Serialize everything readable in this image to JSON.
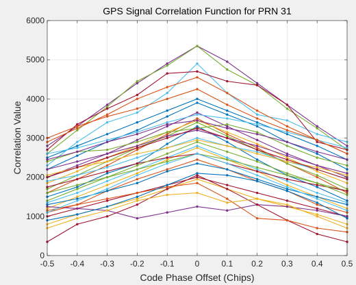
{
  "chart_data": {
    "type": "line",
    "title": "GPS Signal Correlation Function for PRN 31",
    "xlabel": "Code Phase Offset (Chips)",
    "ylabel": "Correlation Value",
    "xlim": [
      -0.5,
      0.5
    ],
    "ylim": [
      0,
      6000
    ],
    "xticks": [
      "-0.5",
      "-0.4",
      "-0.3",
      "-0.2",
      "-0.1",
      "0",
      "0.1",
      "0.2",
      "0.3",
      "0.4",
      "0.5"
    ],
    "yticks": [
      "0",
      "1000",
      "2000",
      "3000",
      "4000",
      "5000",
      "6000"
    ],
    "grid": true,
    "x": [
      -0.5,
      -0.4,
      -0.3,
      -0.2,
      -0.1,
      0,
      0.1,
      0.2,
      0.3,
      0.4,
      0.5
    ],
    "series": [
      {
        "color": "#0072bd",
        "values": [
          2200,
          2550,
          2900,
          3200,
          3550,
          3900,
          3600,
          3300,
          2900,
          2600,
          2200
        ]
      },
      {
        "color": "#d95319",
        "values": [
          1600,
          1950,
          2300,
          2700,
          3100,
          3500,
          3100,
          2750,
          2350,
          2000,
          1600
        ]
      },
      {
        "color": "#edb120",
        "values": [
          1200,
          1500,
          1800,
          2100,
          2450,
          2750,
          2450,
          2150,
          1800,
          1500,
          1200
        ]
      },
      {
        "color": "#7e2f8e",
        "values": [
          2800,
          3300,
          3850,
          4400,
          4900,
          5350,
          4950,
          4400,
          3850,
          3300,
          2800
        ]
      },
      {
        "color": "#77ac30",
        "values": [
          2600,
          3200,
          3800,
          4450,
          4850,
          5350,
          4750,
          4350,
          3750,
          3250,
          2700
        ]
      },
      {
        "color": "#4dbeee",
        "values": [
          2300,
          2900,
          3400,
          3650,
          4150,
          4900,
          4150,
          3600,
          3450,
          3100,
          2900
        ]
      },
      {
        "color": "#a2142f",
        "values": [
          2700,
          3350,
          3750,
          4100,
          4650,
          4700,
          4450,
          4350,
          3850,
          2900,
          2700
        ]
      },
      {
        "color": "#0072bd",
        "values": [
          1500,
          1750,
          2100,
          2350,
          2850,
          3300,
          2900,
          2450,
          2050,
          1750,
          1400
        ]
      },
      {
        "color": "#d95319",
        "values": [
          1100,
          1300,
          1650,
          1950,
          2200,
          2450,
          2200,
          1900,
          1650,
          1300,
          1100
        ]
      },
      {
        "color": "#edb120",
        "values": [
          800,
          1050,
          1250,
          1450,
          1700,
          1950,
          1700,
          1450,
          1250,
          1050,
          800
        ]
      },
      {
        "color": "#7e2f8e",
        "values": [
          2000,
          2300,
          2600,
          2950,
          3300,
          3650,
          3300,
          2950,
          2600,
          2300,
          2000
        ]
      },
      {
        "color": "#77ac30",
        "values": [
          1700,
          2050,
          2400,
          2750,
          3050,
          3400,
          3050,
          2700,
          2350,
          2050,
          1700
        ]
      },
      {
        "color": "#4dbeee",
        "values": [
          1350,
          1600,
          1900,
          2200,
          2500,
          2800,
          2500,
          2200,
          1900,
          1600,
          1350
        ]
      },
      {
        "color": "#a2142f",
        "values": [
          1000,
          1200,
          1400,
          1600,
          1800,
          2000,
          1800,
          1600,
          1400,
          1200,
          1000
        ]
      },
      {
        "color": "#0072bd",
        "values": [
          2500,
          2800,
          3100,
          3400,
          3700,
          4000,
          3700,
          3400,
          3100,
          2800,
          2450
        ]
      },
      {
        "color": "#d95319",
        "values": [
          2900,
          3250,
          3600,
          4000,
          4300,
          4550,
          4150,
          3700,
          3300,
          2950,
          2600
        ]
      },
      {
        "color": "#edb120",
        "values": [
          1850,
          2150,
          2500,
          2800,
          3150,
          3450,
          3150,
          2850,
          2500,
          2150,
          1850
        ]
      },
      {
        "color": "#7e2f8e",
        "values": [
          1250,
          1200,
          1150,
          950,
          1100,
          1250,
          1150,
          1300,
          1250,
          1150,
          1000
        ]
      },
      {
        "color": "#77ac30",
        "values": [
          2400,
          2650,
          2700,
          2900,
          3150,
          3250,
          3350,
          3150,
          2800,
          2500,
          2300
        ]
      },
      {
        "color": "#4dbeee",
        "values": [
          1900,
          2050,
          2250,
          2500,
          2750,
          3000,
          2800,
          2650,
          2400,
          2200,
          1950
        ]
      },
      {
        "color": "#a2142f",
        "values": [
          350,
          800,
          1000,
          1300,
          1700,
          2050,
          1700,
          1300,
          900,
          550,
          350
        ]
      },
      {
        "color": "#0072bd",
        "values": [
          1300,
          1450,
          1650,
          1850,
          2150,
          2350,
          2200,
          1950,
          1700,
          1500,
          1300
        ]
      },
      {
        "color": "#d95319",
        "values": [
          1150,
          1300,
          1450,
          1600,
          1750,
          1850,
          1450,
          950,
          900,
          700,
          600
        ]
      },
      {
        "color": "#edb120",
        "values": [
          700,
          950,
          1150,
          1400,
          1550,
          1600,
          1350,
          1450,
          1300,
          1000,
          700
        ]
      },
      {
        "color": "#7e2f8e",
        "values": [
          2200,
          2400,
          2600,
          2800,
          3050,
          3200,
          3000,
          2800,
          2550,
          2300,
          2100
        ]
      },
      {
        "color": "#77ac30",
        "values": [
          1600,
          1800,
          2000,
          2200,
          2400,
          2600,
          2450,
          2250,
          2050,
          1850,
          1650
        ]
      },
      {
        "color": "#4dbeee",
        "values": [
          2600,
          2750,
          2950,
          3150,
          3400,
          3600,
          3500,
          3350,
          3150,
          2950,
          2750
        ]
      },
      {
        "color": "#a2142f",
        "values": [
          1750,
          1950,
          2150,
          2350,
          2500,
          2600,
          2350,
          2150,
          1950,
          1800,
          1650
        ]
      },
      {
        "color": "#0072bd",
        "values": [
          900,
          1050,
          1250,
          1500,
          1800,
          2100,
          2050,
          1900,
          1650,
          1350,
          950
        ]
      },
      {
        "color": "#d95319",
        "values": [
          3000,
          3300,
          3550,
          3750,
          4000,
          4250,
          3850,
          3500,
          3200,
          2950,
          2600
        ]
      },
      {
        "color": "#edb120",
        "values": [
          2050,
          2250,
          2400,
          2600,
          2750,
          2950,
          2800,
          2600,
          2400,
          2250,
          2050
        ]
      },
      {
        "color": "#7e2f8e",
        "values": [
          2450,
          2650,
          2900,
          3100,
          3350,
          3450,
          3250,
          3100,
          2900,
          2650,
          2450
        ]
      },
      {
        "color": "#77ac30",
        "values": [
          1400,
          1700,
          2000,
          2300,
          2600,
          2900,
          2650,
          2400,
          2100,
          1850,
          1550
        ]
      },
      {
        "color": "#4dbeee",
        "values": [
          1100,
          1400,
          1700,
          2050,
          2350,
          2600,
          2350,
          2050,
          1750,
          1450,
          1150
        ]
      },
      {
        "color": "#a2142f",
        "values": [
          2000,
          2250,
          2500,
          2750,
          3000,
          3250,
          3000,
          2700,
          2450,
          2200,
          1950
        ]
      }
    ]
  }
}
